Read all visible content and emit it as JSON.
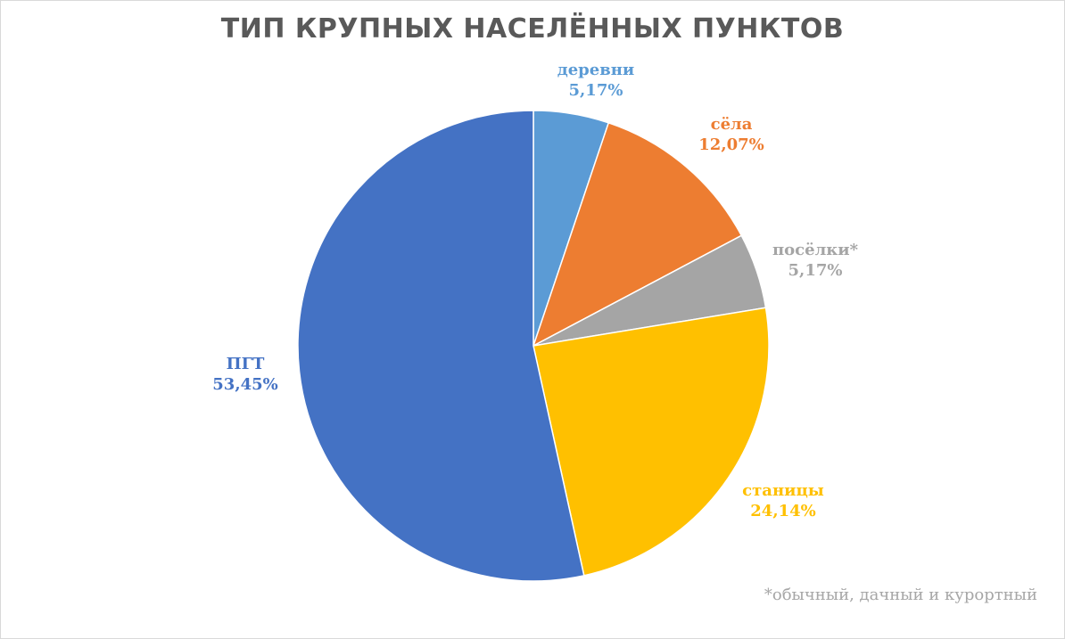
{
  "chart_data": {
    "type": "pie",
    "title": "ТИП КРУПНЫХ НАСЕЛЁННЫХ ПУНКТОВ",
    "slices": [
      {
        "label": "деревни",
        "value": 5.17,
        "value_label": "5,17%",
        "color": "#5b9bd5"
      },
      {
        "label": "сёла",
        "value": 12.07,
        "value_label": "12,07%",
        "color": "#ed7d31"
      },
      {
        "label": "посёлки*",
        "value": 5.17,
        "value_label": "5,17%",
        "color": "#a5a5a5"
      },
      {
        "label": "станицы",
        "value": 24.14,
        "value_label": "24,14%",
        "color": "#ffc000"
      },
      {
        "label": "ПГТ",
        "value": 53.45,
        "value_label": "53,45%",
        "color": "#4472c4"
      }
    ],
    "start_angle": "12 o'clock",
    "direction": "clockwise",
    "legend": "none",
    "footnote": "*обычный, дачный и курортный"
  }
}
